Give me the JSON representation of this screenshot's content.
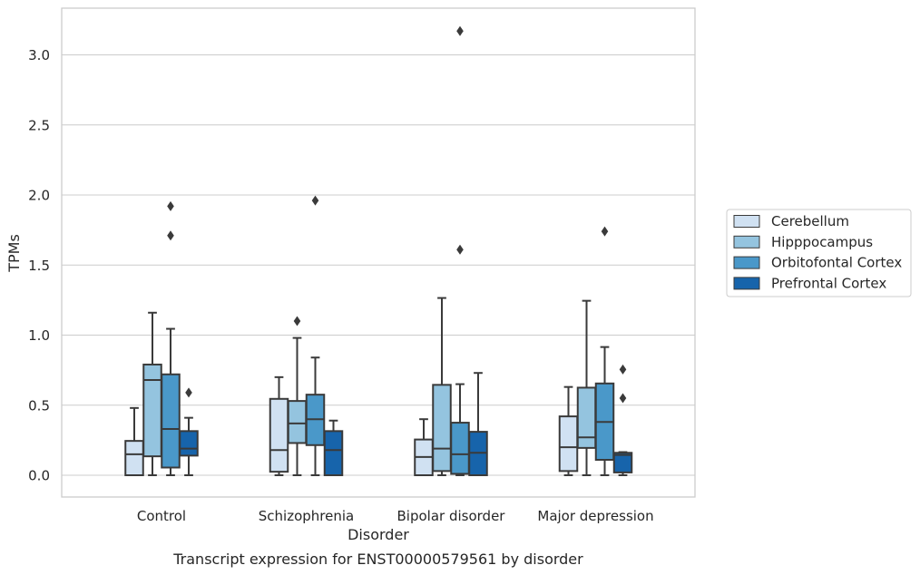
{
  "chart_data": {
    "type": "box",
    "xlabel": "Disorder",
    "ylabel": "TPMs",
    "caption": "Transcript expression for ENST00000579561 by disorder",
    "ylim": [
      -0.15,
      3.32
    ],
    "yticks": [
      "0.0",
      "0.5",
      "1.0",
      "1.5",
      "2.0",
      "2.5",
      "3.0"
    ],
    "ytick_values": [
      0.0,
      0.5,
      1.0,
      1.5,
      2.0,
      2.5,
      3.0
    ],
    "grid": "horizontal",
    "legend_position": "right",
    "categories": [
      "Control",
      "Schizophrenia",
      "Bipolar disorder",
      "Major depression"
    ],
    "series": [
      {
        "name": "Cerebellum",
        "color": "#d0e1f2",
        "boxes": [
          {
            "q1": 0.0,
            "median": 0.15,
            "q3": 0.245,
            "whisker_low": 0.0,
            "whisker_high": 0.48,
            "outliers": []
          },
          {
            "q1": 0.025,
            "median": 0.18,
            "q3": 0.545,
            "whisker_low": 0.0,
            "whisker_high": 0.7,
            "outliers": []
          },
          {
            "q1": 0.0,
            "median": 0.13,
            "q3": 0.255,
            "whisker_low": 0.0,
            "whisker_high": 0.4,
            "outliers": []
          },
          {
            "q1": 0.03,
            "median": 0.2,
            "q3": 0.42,
            "whisker_low": 0.0,
            "whisker_high": 0.63,
            "outliers": []
          }
        ]
      },
      {
        "name": "Hipppocampus",
        "color": "#94c4df",
        "boxes": [
          {
            "q1": 0.135,
            "median": 0.68,
            "q3": 0.79,
            "whisker_low": 0.0,
            "whisker_high": 1.16,
            "outliers": []
          },
          {
            "q1": 0.23,
            "median": 0.37,
            "q3": 0.53,
            "whisker_low": 0.0,
            "whisker_high": 0.98,
            "outliers": [
              1.1
            ]
          },
          {
            "q1": 0.03,
            "median": 0.19,
            "q3": 0.645,
            "whisker_low": 0.0,
            "whisker_high": 1.265,
            "outliers": []
          },
          {
            "q1": 0.195,
            "median": 0.27,
            "q3": 0.625,
            "whisker_low": 0.0,
            "whisker_high": 1.245,
            "outliers": []
          }
        ]
      },
      {
        "name": "Orbitofontal Cortex",
        "color": "#4a98c9",
        "boxes": [
          {
            "q1": 0.055,
            "median": 0.33,
            "q3": 0.72,
            "whisker_low": 0.0,
            "whisker_high": 1.045,
            "outliers": [
              1.71,
              1.92
            ]
          },
          {
            "q1": 0.215,
            "median": 0.4,
            "q3": 0.575,
            "whisker_low": 0.0,
            "whisker_high": 0.84,
            "outliers": [
              1.96
            ]
          },
          {
            "q1": 0.01,
            "median": 0.15,
            "q3": 0.375,
            "whisker_low": 0.0,
            "whisker_high": 0.65,
            "outliers": [
              1.61,
              3.17
            ]
          },
          {
            "q1": 0.11,
            "median": 0.38,
            "q3": 0.655,
            "whisker_low": 0.0,
            "whisker_high": 0.915,
            "outliers": [
              1.74
            ]
          }
        ]
      },
      {
        "name": "Prefrontal Cortex",
        "color": "#1764ab",
        "boxes": [
          {
            "q1": 0.14,
            "median": 0.19,
            "q3": 0.315,
            "whisker_low": 0.0,
            "whisker_high": 0.41,
            "outliers": [
              0.59
            ]
          },
          {
            "q1": 0.0,
            "median": 0.18,
            "q3": 0.315,
            "whisker_low": 0.0,
            "whisker_high": 0.39,
            "outliers": []
          },
          {
            "q1": 0.0,
            "median": 0.16,
            "q3": 0.31,
            "whisker_low": 0.0,
            "whisker_high": 0.73,
            "outliers": []
          },
          {
            "q1": 0.02,
            "median": 0.145,
            "q3": 0.16,
            "whisker_low": 0.0,
            "whisker_high": 0.165,
            "outliers": [
              0.55,
              0.755
            ]
          }
        ]
      }
    ]
  }
}
